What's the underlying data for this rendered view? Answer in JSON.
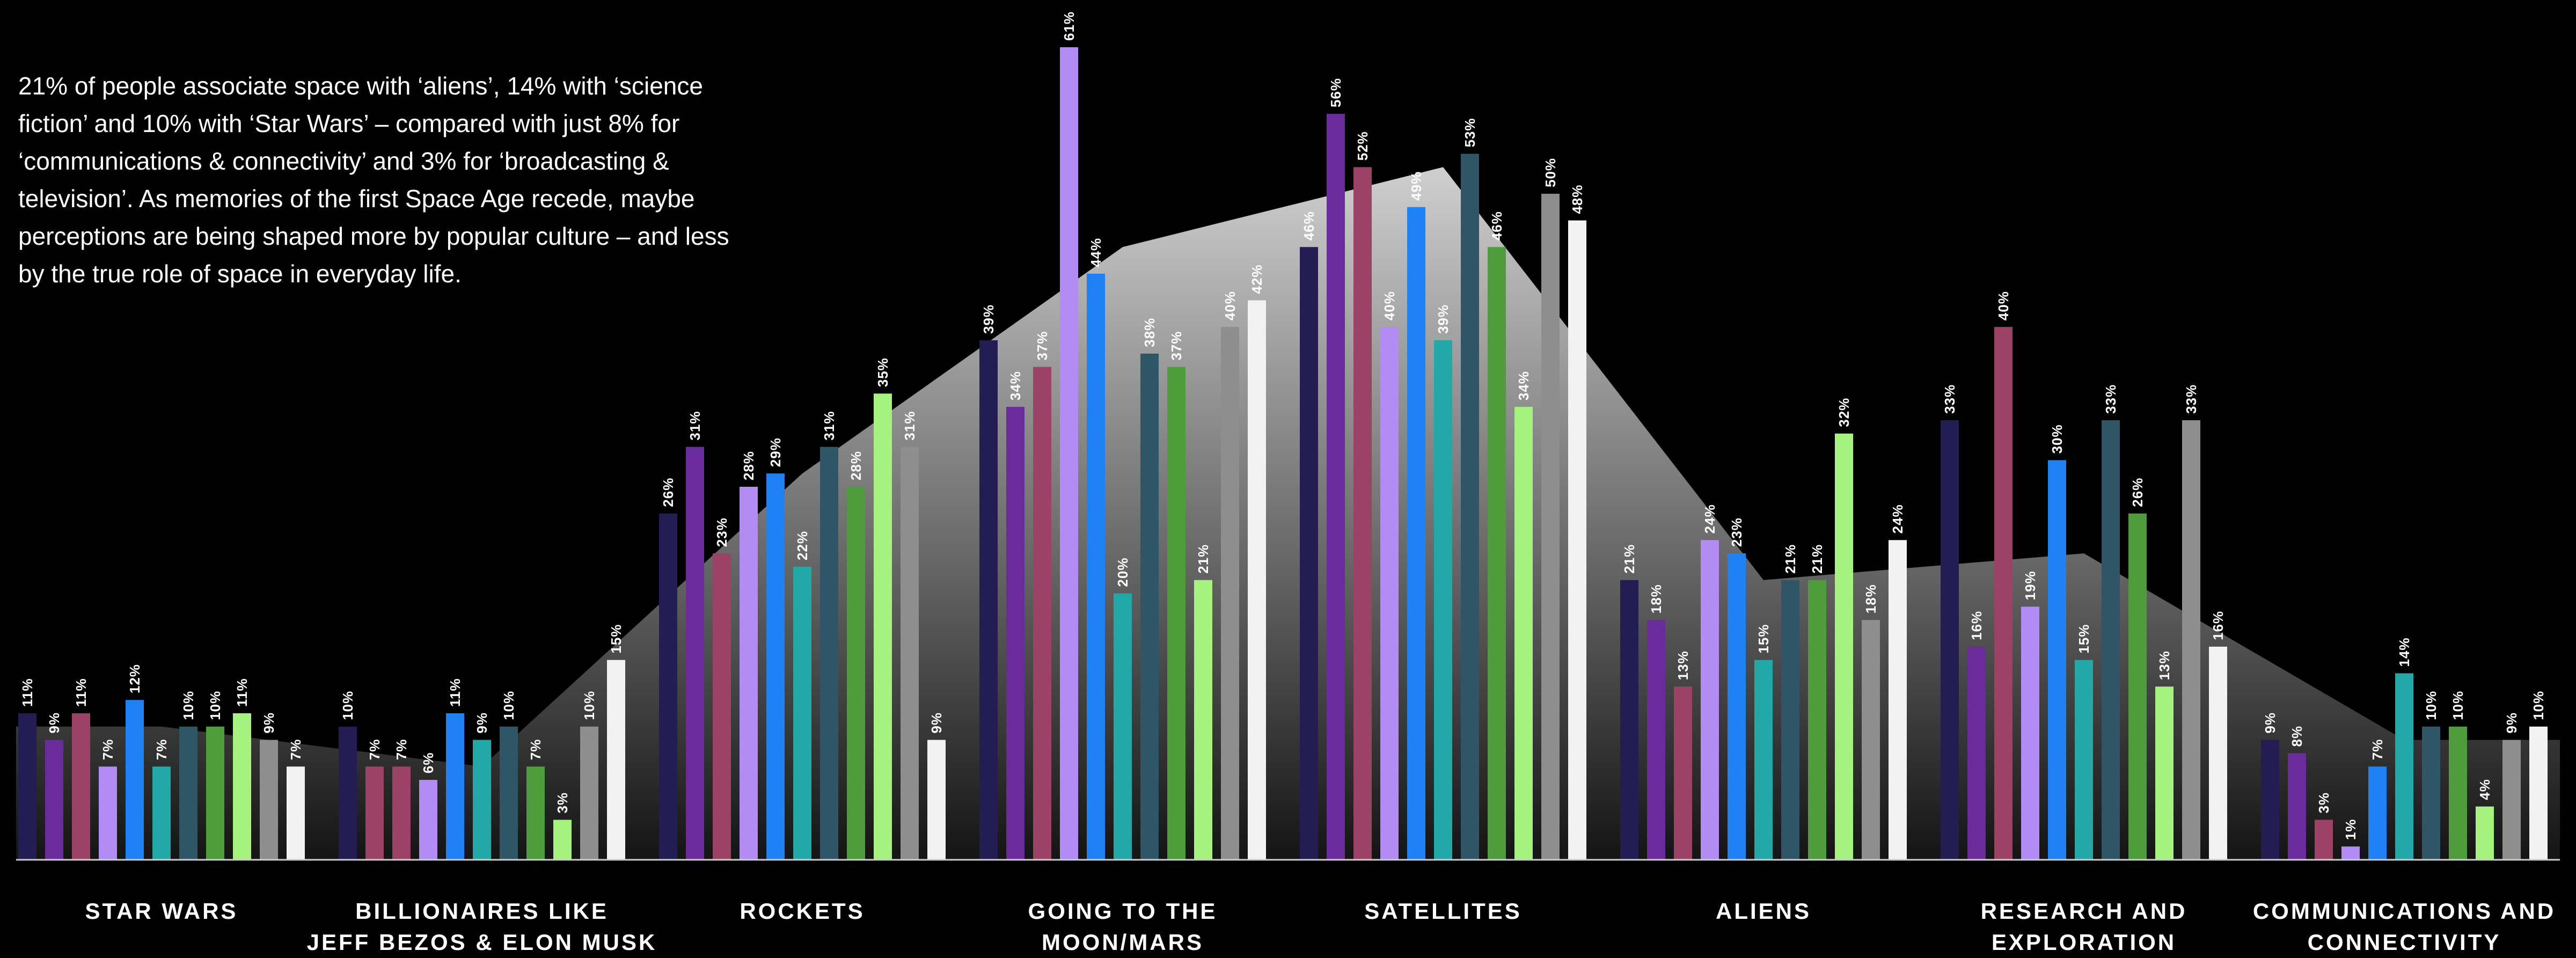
{
  "intro": "21% of people associate space with ‘aliens’, 14% with ‘science fiction’ and 10% with ‘Star Wars’ – compared with just 8% for ‘communications & connectivity’ and 3% for ‘broadcasting & television’. As memories of the first Space Age recede, maybe perceptions are being shaped more by popular culture – and less by the true role of space in everyday life.",
  "chart_data": {
    "type": "bar",
    "categories": [
      [
        "STAR WARS"
      ],
      [
        "BILLIONAIRES LIKE",
        "JEFF BEZOS & ELON MUSK"
      ],
      [
        "ROCKETS"
      ],
      [
        "GOING TO THE",
        "MOON/MARS"
      ],
      [
        "SATELLITES"
      ],
      [
        "ALIENS"
      ],
      [
        "RESEARCH AND",
        "EXPLORATION"
      ],
      [
        "COMMUNICATIONS AND",
        "CONNECTIVITY"
      ]
    ],
    "series_colors": [
      "#231d54",
      "#6a2c9a",
      "#9b4266",
      "#b28cf2",
      "#1e82f5",
      "#22a8a6",
      "#2f5666",
      "#4e9c3c",
      "#a6f27e",
      "#8e8e8e",
      "#f2f2f2"
    ],
    "values": [
      [
        11,
        9,
        11,
        7,
        12,
        7,
        10,
        10,
        11,
        9,
        7
      ],
      [
        10,
        7,
        7,
        6,
        11,
        9,
        10,
        7,
        3,
        10,
        15
      ],
      [
        26,
        31,
        23,
        28,
        29,
        22,
        31,
        28,
        35,
        31,
        9
      ],
      [
        39,
        34,
        37,
        61,
        44,
        20,
        38,
        37,
        21,
        40,
        42
      ],
      [
        46,
        56,
        52,
        40,
        49,
        39,
        53,
        46,
        34,
        50,
        48
      ],
      [
        21,
        18,
        13,
        24,
        23,
        15,
        21,
        21,
        32,
        18,
        24
      ],
      [
        33,
        16,
        40,
        19,
        30,
        15,
        33,
        26,
        13,
        33,
        16
      ],
      [
        9,
        8,
        3,
        1,
        7,
        14,
        10,
        10,
        4,
        9,
        10
      ]
    ],
    "bar_colors": [
      [
        0,
        1,
        2,
        3,
        4,
        5,
        6,
        7,
        8,
        9,
        10
      ],
      [
        0,
        2,
        2,
        3,
        4,
        5,
        6,
        7,
        8,
        9,
        10
      ],
      [
        0,
        1,
        2,
        3,
        4,
        5,
        6,
        7,
        8,
        9,
        10
      ],
      [
        0,
        1,
        2,
        3,
        4,
        5,
        6,
        7,
        8,
        9,
        10
      ],
      [
        0,
        1,
        2,
        3,
        4,
        5,
        6,
        7,
        8,
        9,
        10
      ],
      [
        0,
        1,
        2,
        3,
        4,
        5,
        6,
        7,
        8,
        9,
        10
      ],
      [
        0,
        1,
        2,
        3,
        4,
        5,
        6,
        7,
        8,
        9,
        10
      ],
      [
        0,
        1,
        2,
        3,
        4,
        5,
        6,
        7,
        8,
        9,
        10
      ]
    ],
    "background_area_values": [
      10,
      7,
      29,
      46,
      52,
      21,
      23,
      9
    ],
    "ylim": [
      0,
      61
    ],
    "value_suffix": "%",
    "grid": false,
    "legend": "none"
  }
}
